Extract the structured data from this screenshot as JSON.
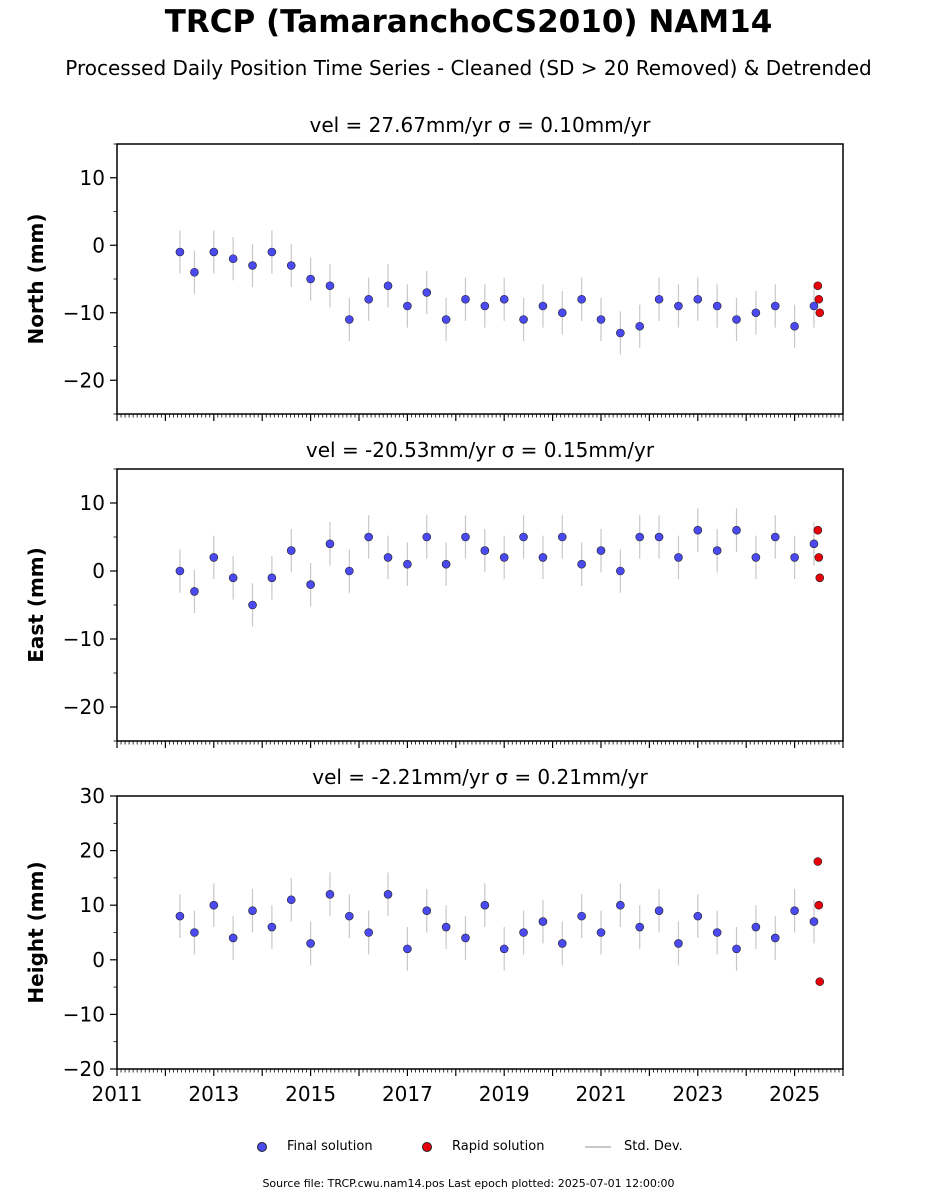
{
  "title": "TRCP (TamaranchoCS2010) NAM14",
  "subtitle": "Processed Daily Position Time Series - Cleaned (SD > 20 Removed) & Detrended",
  "legend": {
    "final": "Final solution",
    "rapid": "Rapid solution",
    "std": "Std. Dev."
  },
  "footer": "Source file: TRCP.cwu.nam14.pos  Last epoch plotted: 2025-07-01 12:00:00",
  "colors": {
    "final": "#4a4af0",
    "rapid": "#e8000b",
    "std": "#c8c8c8",
    "marker_edge": "#222222"
  },
  "chart_data": [
    {
      "type": "scatter",
      "title": "vel = 27.67mm/yr   σ = 0.10mm/yr",
      "ylabel": "North (mm)",
      "xlim": [
        2011,
        2026
      ],
      "ylim": [
        -25,
        15
      ],
      "yticks": [
        -20,
        -10,
        0,
        10
      ],
      "xticks": [
        2011,
        2013,
        2015,
        2017,
        2019,
        2021,
        2023,
        2025
      ],
      "show_xtick_labels": false,
      "series": [
        {
          "name": "Final solution",
          "x": [
            2012.3,
            2012.6,
            2013.0,
            2013.4,
            2013.8,
            2014.2,
            2014.6,
            2015.0,
            2015.4,
            2015.8,
            2016.2,
            2016.6,
            2017.0,
            2017.4,
            2017.8,
            2018.2,
            2018.6,
            2019.0,
            2019.4,
            2019.8,
            2020.2,
            2020.6,
            2021.0,
            2021.4,
            2021.8,
            2022.2,
            2022.6,
            2023.0,
            2023.4,
            2023.8,
            2024.2,
            2024.6,
            2025.0,
            2025.4
          ],
          "y": [
            -1,
            -4,
            -1,
            -2,
            -3,
            -1,
            -3,
            -5,
            -6,
            -11,
            -8,
            -6,
            -9,
            -7,
            -11,
            -8,
            -9,
            -8,
            -11,
            -9,
            -10,
            -8,
            -11,
            -13,
            -12,
            -8,
            -9,
            -8,
            -9,
            -11,
            -10,
            -9,
            -12,
            -9
          ]
        },
        {
          "name": "Rapid solution",
          "x": [
            2025.48,
            2025.5,
            2025.52
          ],
          "y": [
            -6,
            -8,
            -10
          ]
        }
      ]
    },
    {
      "type": "scatter",
      "title": "vel = -20.53mm/yr   σ = 0.15mm/yr",
      "ylabel": "East (mm)",
      "xlim": [
        2011,
        2026
      ],
      "ylim": [
        -25,
        15
      ],
      "yticks": [
        -20,
        -10,
        0,
        10
      ],
      "xticks": [
        2011,
        2013,
        2015,
        2017,
        2019,
        2021,
        2023,
        2025
      ],
      "show_xtick_labels": false,
      "series": [
        {
          "name": "Final solution",
          "x": [
            2012.3,
            2012.6,
            2013.0,
            2013.4,
            2013.8,
            2014.2,
            2014.6,
            2015.0,
            2015.4,
            2015.8,
            2016.2,
            2016.6,
            2017.0,
            2017.4,
            2017.8,
            2018.2,
            2018.6,
            2019.0,
            2019.4,
            2019.8,
            2020.2,
            2020.6,
            2021.0,
            2021.4,
            2021.8,
            2022.2,
            2022.6,
            2023.0,
            2023.4,
            2023.8,
            2024.2,
            2024.6,
            2025.0,
            2025.4
          ],
          "y": [
            0,
            -3,
            2,
            -1,
            -5,
            -1,
            3,
            -2,
            4,
            0,
            5,
            2,
            1,
            5,
            1,
            5,
            3,
            2,
            5,
            2,
            5,
            1,
            3,
            0,
            5,
            5,
            2,
            6,
            3,
            6,
            2,
            5,
            2,
            4
          ]
        },
        {
          "name": "Rapid solution",
          "x": [
            2025.48,
            2025.5,
            2025.52
          ],
          "y": [
            6,
            2,
            -1
          ]
        }
      ]
    },
    {
      "type": "scatter",
      "title": "vel = -2.21mm/yr   σ = 0.21mm/yr",
      "ylabel": "Height (mm)",
      "xlim": [
        2011,
        2026
      ],
      "ylim": [
        -20,
        30
      ],
      "yticks": [
        -20,
        -10,
        0,
        10,
        20,
        30
      ],
      "xticks": [
        2011,
        2013,
        2015,
        2017,
        2019,
        2021,
        2023,
        2025
      ],
      "show_xtick_labels": true,
      "series": [
        {
          "name": "Final solution",
          "x": [
            2012.3,
            2012.6,
            2013.0,
            2013.4,
            2013.8,
            2014.2,
            2014.6,
            2015.0,
            2015.4,
            2015.8,
            2016.2,
            2016.6,
            2017.0,
            2017.4,
            2017.8,
            2018.2,
            2018.6,
            2019.0,
            2019.4,
            2019.8,
            2020.2,
            2020.6,
            2021.0,
            2021.4,
            2021.8,
            2022.2,
            2022.6,
            2023.0,
            2023.4,
            2023.8,
            2024.2,
            2024.6,
            2025.0,
            2025.4
          ],
          "y": [
            8,
            5,
            10,
            4,
            9,
            6,
            11,
            3,
            12,
            8,
            5,
            12,
            2,
            9,
            6,
            4,
            10,
            2,
            5,
            7,
            3,
            8,
            5,
            10,
            6,
            9,
            3,
            8,
            5,
            2,
            6,
            4,
            9,
            7
          ]
        },
        {
          "name": "Rapid solution",
          "x": [
            2025.48,
            2025.5,
            2025.52
          ],
          "y": [
            18,
            10,
            -4
          ]
        }
      ]
    }
  ]
}
